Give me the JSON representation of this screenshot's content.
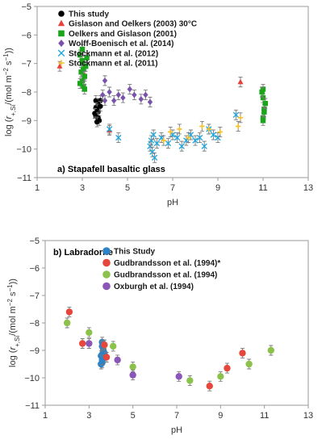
{
  "chart_data": [
    {
      "type": "scatter",
      "panel_label": "a) Stapafell basaltic glass",
      "xlabel": "pH",
      "ylabel": "log (r+,Si/(mol m−2 s−1))",
      "xlim": [
        1,
        13
      ],
      "ylim": [
        -11,
        -5
      ],
      "xticks": [
        1,
        3,
        5,
        7,
        9,
        11,
        13
      ],
      "yticks": [
        -11,
        -10,
        -9,
        -8,
        -7,
        -6,
        -5
      ],
      "grid": false,
      "legend_position": "top-left",
      "series": [
        {
          "name": "This study",
          "marker": "circle",
          "color": "#000000",
          "points": [
            [
              3.6,
              -8.3
            ],
            [
              3.7,
              -8.4
            ],
            [
              3.6,
              -8.55
            ],
            [
              3.7,
              -8.7
            ],
            [
              3.6,
              -8.85
            ],
            [
              3.75,
              -9.0
            ],
            [
              3.65,
              -8.6
            ],
            [
              3.8,
              -8.3
            ],
            [
              3.55,
              -8.75
            ],
            [
              3.7,
              -8.9
            ],
            [
              3.8,
              -8.5
            ],
            [
              3.65,
              -9.05
            ]
          ]
        },
        {
          "name": "Gislason and Oelkers (2003) 30°C",
          "marker": "triangle",
          "color": "#e8413b",
          "points": [
            [
              2.0,
              -7.1
            ],
            [
              3.1,
              -7.4
            ],
            [
              4.2,
              -9.35
            ],
            [
              10.0,
              -7.65
            ]
          ]
        },
        {
          "name": "Oelkers and Gislason (2001)",
          "marker": "square",
          "color": "#1aa51a",
          "points": [
            [
              2.9,
              -6.7
            ],
            [
              3.0,
              -6.5
            ],
            [
              3.0,
              -7.0
            ],
            [
              2.95,
              -7.3
            ],
            [
              3.0,
              -7.6
            ],
            [
              3.05,
              -7.8
            ],
            [
              3.1,
              -7.9
            ],
            [
              3.0,
              -6.9
            ],
            [
              3.05,
              -7.2
            ],
            [
              3.1,
              -7.45
            ],
            [
              2.9,
              -7.7
            ],
            [
              3.15,
              -7.1
            ],
            [
              3.2,
              -6.8
            ],
            [
              11.0,
              -7.9
            ],
            [
              11.0,
              -8.2
            ],
            [
              11.05,
              -8.6
            ],
            [
              11.0,
              -8.9
            ],
            [
              11.1,
              -8.4
            ],
            [
              10.95,
              -8.0
            ],
            [
              11.05,
              -8.7
            ],
            [
              11.0,
              -9.0
            ]
          ]
        },
        {
          "name": "Wolff-Boenisch et al. (2014)",
          "marker": "diamond",
          "color": "#7b52ab",
          "points": [
            [
              4.0,
              -7.6
            ],
            [
              4.2,
              -8.0
            ],
            [
              4.0,
              -8.3
            ],
            [
              4.6,
              -8.1
            ],
            [
              4.8,
              -8.2
            ],
            [
              5.1,
              -7.9
            ],
            [
              5.3,
              -8.1
            ],
            [
              5.6,
              -8.25
            ],
            [
              5.8,
              -8.1
            ],
            [
              6.0,
              -8.35
            ],
            [
              3.9,
              -8.1
            ],
            [
              4.4,
              -8.3
            ]
          ]
        },
        {
          "name": "Stockmann et al. (2012)",
          "marker": "x",
          "color": "#1fa9e0",
          "points": [
            [
              4.2,
              -9.3
            ],
            [
              4.6,
              -9.6
            ],
            [
              6.0,
              -9.9
            ],
            [
              6.05,
              -9.7
            ],
            [
              6.1,
              -10.1
            ],
            [
              6.15,
              -9.5
            ],
            [
              6.2,
              -10.3
            ],
            [
              6.3,
              -9.8
            ],
            [
              6.5,
              -9.6
            ],
            [
              6.8,
              -9.8
            ],
            [
              7.0,
              -9.5
            ],
            [
              7.2,
              -9.6
            ],
            [
              7.4,
              -9.9
            ],
            [
              7.6,
              -9.7
            ],
            [
              7.8,
              -9.5
            ],
            [
              8.0,
              -9.7
            ],
            [
              8.2,
              -9.6
            ],
            [
              8.4,
              -9.9
            ],
            [
              8.6,
              -9.3
            ],
            [
              8.8,
              -9.5
            ],
            [
              9.0,
              -9.6
            ],
            [
              9.8,
              -8.8
            ]
          ]
        },
        {
          "name": "Stockmann et al. (2011)",
          "marker": "plus",
          "color": "#f2c12e",
          "points": [
            [
              6.6,
              -9.7
            ],
            [
              6.9,
              -9.4
            ],
            [
              7.3,
              -9.3
            ],
            [
              7.7,
              -9.6
            ],
            [
              8.3,
              -9.2
            ],
            [
              8.6,
              -9.3
            ],
            [
              9.1,
              -9.4
            ],
            [
              9.9,
              -9.2
            ],
            [
              10.0,
              -8.9
            ]
          ]
        }
      ]
    },
    {
      "type": "scatter",
      "panel_label": "b) Labradorite",
      "xlabel": "pH",
      "ylabel": "log (r+,Si/(mol m−2 s−1))",
      "xlim": [
        1,
        13
      ],
      "ylim": [
        -11,
        -5
      ],
      "xticks": [
        1,
        3,
        5,
        7,
        9,
        11,
        13
      ],
      "yticks": [
        -11,
        -10,
        -9,
        -8,
        -7,
        -6,
        -5
      ],
      "grid": false,
      "legend_position": "top-center",
      "series": [
        {
          "name": "This Study",
          "marker": "circle",
          "color": "#2d83c6",
          "points": [
            [
              3.6,
              -8.7
            ],
            [
              3.6,
              -8.85
            ],
            [
              3.65,
              -9.0
            ],
            [
              3.6,
              -9.15
            ],
            [
              3.65,
              -9.3
            ],
            [
              3.6,
              -9.45
            ],
            [
              3.55,
              -9.5
            ],
            [
              3.7,
              -9.1
            ],
            [
              3.55,
              -9.2
            ],
            [
              3.7,
              -8.8
            ],
            [
              3.6,
              -9.35
            ]
          ]
        },
        {
          "name": "Gudbrandsson et al. (1994)*",
          "marker": "circle",
          "color": "#e5473c",
          "points": [
            [
              2.1,
              -7.6
            ],
            [
              2.7,
              -8.75
            ],
            [
              3.8,
              -9.25
            ],
            [
              8.5,
              -10.3
            ],
            [
              9.3,
              -9.65
            ],
            [
              10.0,
              -9.1
            ],
            [
              3.7,
              -8.8
            ]
          ]
        },
        {
          "name": "Gudbrandsson et al. (1994)",
          "marker": "circle",
          "color": "#8cc14c",
          "points": [
            [
              2.0,
              -8.0
            ],
            [
              3.0,
              -8.35
            ],
            [
              4.1,
              -8.85
            ],
            [
              5.0,
              -9.6
            ],
            [
              7.6,
              -10.1
            ],
            [
              9.0,
              -9.95
            ],
            [
              10.3,
              -9.5
            ],
            [
              11.3,
              -9.0
            ]
          ]
        },
        {
          "name": "Oxburgh et al. (1994)",
          "marker": "circle",
          "color": "#8a56b8",
          "points": [
            [
              3.0,
              -8.75
            ],
            [
              4.3,
              -9.35
            ],
            [
              5.0,
              -9.9
            ],
            [
              7.1,
              -9.95
            ]
          ]
        }
      ]
    }
  ]
}
